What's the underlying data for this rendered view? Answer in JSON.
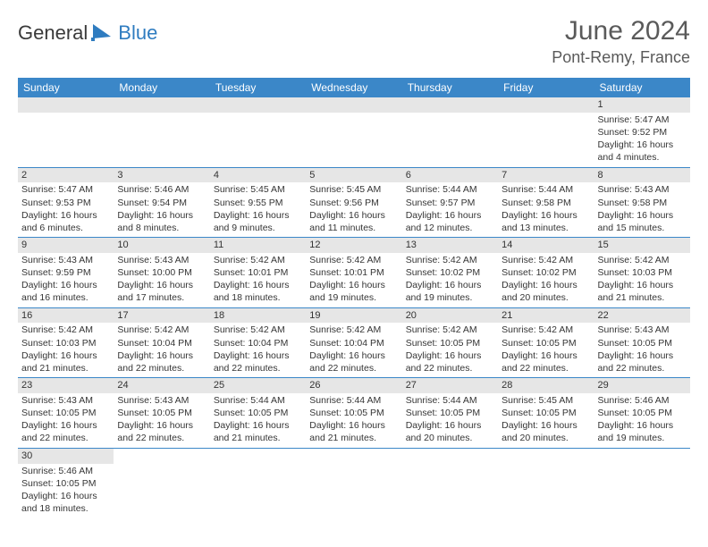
{
  "logo": {
    "text_a": "General",
    "text_b": "Blue"
  },
  "title": "June 2024",
  "location": "Pont-Remy, France",
  "colors": {
    "header_bg": "#3b87c8",
    "header_text": "#ffffff",
    "daynum_bg": "#e6e6e6",
    "text": "#353535",
    "accent": "#2f7cc0"
  },
  "weekdays": [
    "Sunday",
    "Monday",
    "Tuesday",
    "Wednesday",
    "Thursday",
    "Friday",
    "Saturday"
  ],
  "weeks": [
    [
      {
        "empty": true
      },
      {
        "empty": true
      },
      {
        "empty": true
      },
      {
        "empty": true
      },
      {
        "empty": true
      },
      {
        "empty": true
      },
      {
        "day": "1",
        "sunrise": "Sunrise: 5:47 AM",
        "sunset": "Sunset: 9:52 PM",
        "daylight1": "Daylight: 16 hours",
        "daylight2": "and 4 minutes."
      }
    ],
    [
      {
        "day": "2",
        "sunrise": "Sunrise: 5:47 AM",
        "sunset": "Sunset: 9:53 PM",
        "daylight1": "Daylight: 16 hours",
        "daylight2": "and 6 minutes."
      },
      {
        "day": "3",
        "sunrise": "Sunrise: 5:46 AM",
        "sunset": "Sunset: 9:54 PM",
        "daylight1": "Daylight: 16 hours",
        "daylight2": "and 8 minutes."
      },
      {
        "day": "4",
        "sunrise": "Sunrise: 5:45 AM",
        "sunset": "Sunset: 9:55 PM",
        "daylight1": "Daylight: 16 hours",
        "daylight2": "and 9 minutes."
      },
      {
        "day": "5",
        "sunrise": "Sunrise: 5:45 AM",
        "sunset": "Sunset: 9:56 PM",
        "daylight1": "Daylight: 16 hours",
        "daylight2": "and 11 minutes."
      },
      {
        "day": "6",
        "sunrise": "Sunrise: 5:44 AM",
        "sunset": "Sunset: 9:57 PM",
        "daylight1": "Daylight: 16 hours",
        "daylight2": "and 12 minutes."
      },
      {
        "day": "7",
        "sunrise": "Sunrise: 5:44 AM",
        "sunset": "Sunset: 9:58 PM",
        "daylight1": "Daylight: 16 hours",
        "daylight2": "and 13 minutes."
      },
      {
        "day": "8",
        "sunrise": "Sunrise: 5:43 AM",
        "sunset": "Sunset: 9:58 PM",
        "daylight1": "Daylight: 16 hours",
        "daylight2": "and 15 minutes."
      }
    ],
    [
      {
        "day": "9",
        "sunrise": "Sunrise: 5:43 AM",
        "sunset": "Sunset: 9:59 PM",
        "daylight1": "Daylight: 16 hours",
        "daylight2": "and 16 minutes."
      },
      {
        "day": "10",
        "sunrise": "Sunrise: 5:43 AM",
        "sunset": "Sunset: 10:00 PM",
        "daylight1": "Daylight: 16 hours",
        "daylight2": "and 17 minutes."
      },
      {
        "day": "11",
        "sunrise": "Sunrise: 5:42 AM",
        "sunset": "Sunset: 10:01 PM",
        "daylight1": "Daylight: 16 hours",
        "daylight2": "and 18 minutes."
      },
      {
        "day": "12",
        "sunrise": "Sunrise: 5:42 AM",
        "sunset": "Sunset: 10:01 PM",
        "daylight1": "Daylight: 16 hours",
        "daylight2": "and 19 minutes."
      },
      {
        "day": "13",
        "sunrise": "Sunrise: 5:42 AM",
        "sunset": "Sunset: 10:02 PM",
        "daylight1": "Daylight: 16 hours",
        "daylight2": "and 19 minutes."
      },
      {
        "day": "14",
        "sunrise": "Sunrise: 5:42 AM",
        "sunset": "Sunset: 10:02 PM",
        "daylight1": "Daylight: 16 hours",
        "daylight2": "and 20 minutes."
      },
      {
        "day": "15",
        "sunrise": "Sunrise: 5:42 AM",
        "sunset": "Sunset: 10:03 PM",
        "daylight1": "Daylight: 16 hours",
        "daylight2": "and 21 minutes."
      }
    ],
    [
      {
        "day": "16",
        "sunrise": "Sunrise: 5:42 AM",
        "sunset": "Sunset: 10:03 PM",
        "daylight1": "Daylight: 16 hours",
        "daylight2": "and 21 minutes."
      },
      {
        "day": "17",
        "sunrise": "Sunrise: 5:42 AM",
        "sunset": "Sunset: 10:04 PM",
        "daylight1": "Daylight: 16 hours",
        "daylight2": "and 22 minutes."
      },
      {
        "day": "18",
        "sunrise": "Sunrise: 5:42 AM",
        "sunset": "Sunset: 10:04 PM",
        "daylight1": "Daylight: 16 hours",
        "daylight2": "and 22 minutes."
      },
      {
        "day": "19",
        "sunrise": "Sunrise: 5:42 AM",
        "sunset": "Sunset: 10:04 PM",
        "daylight1": "Daylight: 16 hours",
        "daylight2": "and 22 minutes."
      },
      {
        "day": "20",
        "sunrise": "Sunrise: 5:42 AM",
        "sunset": "Sunset: 10:05 PM",
        "daylight1": "Daylight: 16 hours",
        "daylight2": "and 22 minutes."
      },
      {
        "day": "21",
        "sunrise": "Sunrise: 5:42 AM",
        "sunset": "Sunset: 10:05 PM",
        "daylight1": "Daylight: 16 hours",
        "daylight2": "and 22 minutes."
      },
      {
        "day": "22",
        "sunrise": "Sunrise: 5:43 AM",
        "sunset": "Sunset: 10:05 PM",
        "daylight1": "Daylight: 16 hours",
        "daylight2": "and 22 minutes."
      }
    ],
    [
      {
        "day": "23",
        "sunrise": "Sunrise: 5:43 AM",
        "sunset": "Sunset: 10:05 PM",
        "daylight1": "Daylight: 16 hours",
        "daylight2": "and 22 minutes."
      },
      {
        "day": "24",
        "sunrise": "Sunrise: 5:43 AM",
        "sunset": "Sunset: 10:05 PM",
        "daylight1": "Daylight: 16 hours",
        "daylight2": "and 22 minutes."
      },
      {
        "day": "25",
        "sunrise": "Sunrise: 5:44 AM",
        "sunset": "Sunset: 10:05 PM",
        "daylight1": "Daylight: 16 hours",
        "daylight2": "and 21 minutes."
      },
      {
        "day": "26",
        "sunrise": "Sunrise: 5:44 AM",
        "sunset": "Sunset: 10:05 PM",
        "daylight1": "Daylight: 16 hours",
        "daylight2": "and 21 minutes."
      },
      {
        "day": "27",
        "sunrise": "Sunrise: 5:44 AM",
        "sunset": "Sunset: 10:05 PM",
        "daylight1": "Daylight: 16 hours",
        "daylight2": "and 20 minutes."
      },
      {
        "day": "28",
        "sunrise": "Sunrise: 5:45 AM",
        "sunset": "Sunset: 10:05 PM",
        "daylight1": "Daylight: 16 hours",
        "daylight2": "and 20 minutes."
      },
      {
        "day": "29",
        "sunrise": "Sunrise: 5:46 AM",
        "sunset": "Sunset: 10:05 PM",
        "daylight1": "Daylight: 16 hours",
        "daylight2": "and 19 minutes."
      }
    ],
    [
      {
        "day": "30",
        "sunrise": "Sunrise: 5:46 AM",
        "sunset": "Sunset: 10:05 PM",
        "daylight1": "Daylight: 16 hours",
        "daylight2": "and 18 minutes."
      },
      {
        "empty": true,
        "blank": true
      },
      {
        "empty": true,
        "blank": true
      },
      {
        "empty": true,
        "blank": true
      },
      {
        "empty": true,
        "blank": true
      },
      {
        "empty": true,
        "blank": true
      },
      {
        "empty": true,
        "blank": true
      }
    ]
  ]
}
